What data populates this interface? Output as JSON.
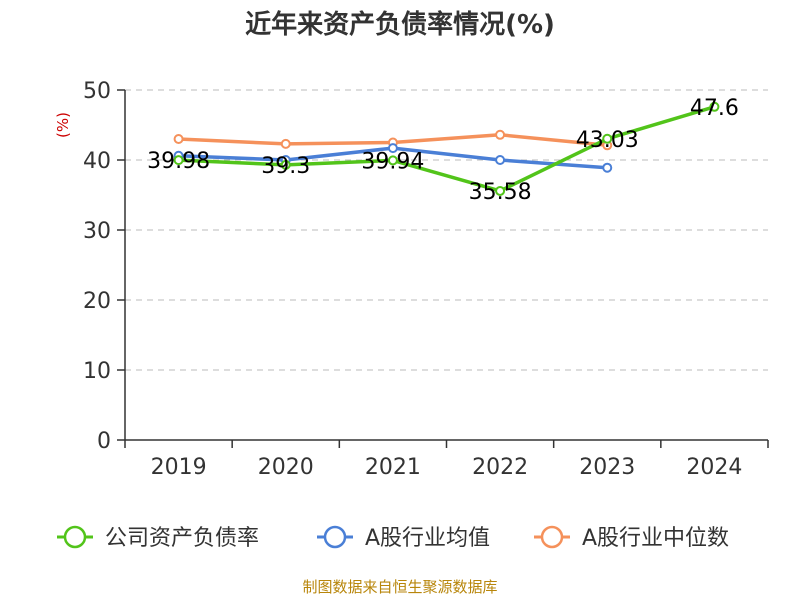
{
  "chart_data": {
    "type": "line",
    "title": "近年来资产负债率情况(%)",
    "ylabel": "(%)",
    "xlabel": "",
    "categories": [
      "2019",
      "2020",
      "2021",
      "2022",
      "2023",
      "2024"
    ],
    "ylim": [
      0,
      50
    ],
    "yticks": [
      0,
      10,
      20,
      30,
      40,
      50
    ],
    "grid": true,
    "legend_position": "bottom",
    "series": [
      {
        "name": "公司资产负债率",
        "color": "#52c41a",
        "values": [
          39.98,
          39.3,
          39.94,
          35.58,
          43.03,
          47.6
        ],
        "data_labels": [
          "39.98",
          "39.3",
          "39.94",
          "35.58",
          "43.03",
          "47.6"
        ]
      },
      {
        "name": "A股行业均值",
        "color": "#4a7fd6",
        "values": [
          40.6,
          40.0,
          41.7,
          40.0,
          38.9,
          null
        ]
      },
      {
        "name": "A股行业中位数",
        "color": "#f5915b",
        "values": [
          43.0,
          42.3,
          42.5,
          43.6,
          42.1,
          null
        ]
      }
    ]
  },
  "source": "制图数据来自恒生聚源数据库"
}
